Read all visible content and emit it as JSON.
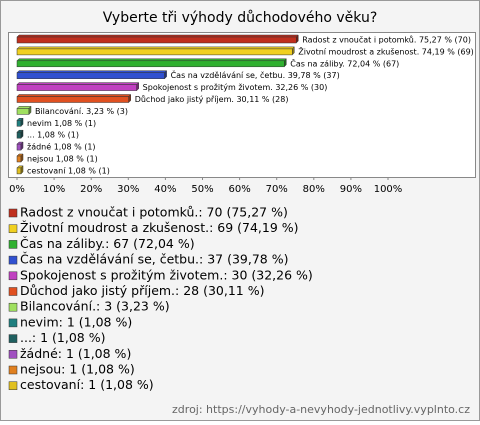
{
  "chart_data": {
    "type": "bar",
    "orientation": "horizontal",
    "title": "Vyberte tři výhody důchodového věku?",
    "categories": [
      "Radost z vnoučat i potomků.",
      "Životní moudrost a zkušenost.",
      "Čas na záliby.",
      "Čas na vzdělávání se, četbu.",
      "Spokojenost s prožitým životem.",
      "Důchod jako jistý příjem.",
      "Bilancování.",
      "nevim",
      "...",
      "žádné",
      "nejsou",
      "cestovaní"
    ],
    "values": [
      75.27,
      74.19,
      72.04,
      39.78,
      32.26,
      30.11,
      3.23,
      1.08,
      1.08,
      1.08,
      1.08,
      1.08
    ],
    "value_labels": [
      "Radost z vnoučat i potomků. 75,27 % (70)",
      "Životní moudrost a zkušenost. 74,19 % (69)",
      "Čas na záliby. 72,04 % (67)",
      "Čas na vzdělávání se, četbu. 39,78 % (37)",
      "Spokojenost s prožitým životem. 32,26 % (30)",
      "Důchod jako jistý příjem. 30,11 % (28)",
      "Bilancování. 3,23 % (3)",
      "nevim 1,08 % (1)",
      "... 1,08 % (1)",
      "žádné 1,08 % (1)",
      "nejsou 1,08 % (1)",
      "cestovaní 1,08 % (1)"
    ],
    "colors": [
      "#c0301e",
      "#f0d020",
      "#30b030",
      "#3050d0",
      "#c040c0",
      "#e05020",
      "#a0e060",
      "#208080",
      "#1f6060",
      "#a050c0",
      "#e08020",
      "#e0c020"
    ],
    "legend": [
      "Radost z vnoučat i potomků.: 70 (75,27 %)",
      "Životní moudrost a zkušenost.: 69 (74,19 %)",
      "Čas na záliby.: 67 (72,04 %)",
      "Čas na vzdělávání se, četbu.: 37 (39,78 %)",
      "Spokojenost s prožitým životem.: 30 (32,26 %)",
      "Důchod jako jistý příjem.: 28 (30,11 %)",
      "Bilancování.: 3 (3,23 %)",
      "nevim: 1 (1,08 %)",
      "...: 1 (1,08 %)",
      "žádné: 1 (1,08 %)",
      "nejsou: 1 (1,08 %)",
      "cestovaní: 1 (1,08 %)"
    ],
    "xlim": [
      0,
      100
    ],
    "xticks": [
      {
        "value": 0,
        "label": "0%"
      },
      {
        "value": 10,
        "label": "10%"
      },
      {
        "value": 20,
        "label": "20%"
      },
      {
        "value": 30,
        "label": "30%"
      },
      {
        "value": 40,
        "label": "40%"
      },
      {
        "value": 50,
        "label": "50%"
      },
      {
        "value": 60,
        "label": "60%"
      },
      {
        "value": 70,
        "label": "70%"
      },
      {
        "value": 80,
        "label": "80%"
      },
      {
        "value": 90,
        "label": "90%"
      },
      {
        "value": 100,
        "label": "100%"
      }
    ],
    "source": "zdroj: https://vyhody-a-nevyhody-jednotlivy.vyplnto.cz"
  }
}
